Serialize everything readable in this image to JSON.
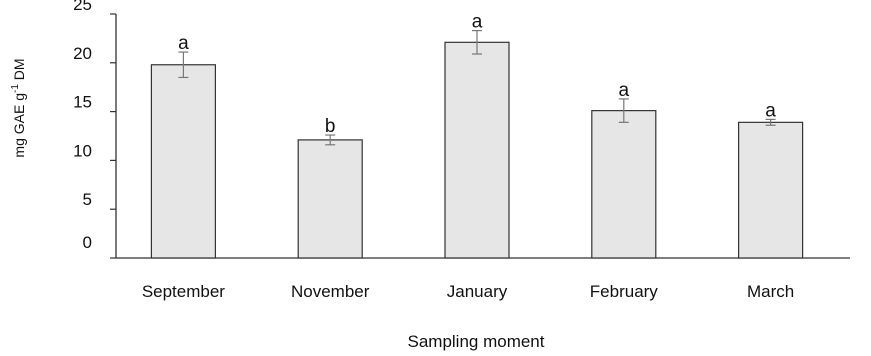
{
  "chart_data": {
    "type": "bar",
    "title": "",
    "xlabel": "Sampling moment",
    "ylabel": {
      "prefix": "mg GAE g",
      "superscript": "-1",
      "suffix": " DM"
    },
    "ylim": [
      0,
      25
    ],
    "yticks": [
      "0",
      "5",
      "10",
      "15",
      "20",
      "25"
    ],
    "grid": false,
    "legend": "none",
    "categories": [
      "September",
      "November",
      "January",
      "February",
      "March"
    ],
    "values": [
      19.8,
      12.1,
      22.1,
      15.1,
      13.9
    ],
    "error": [
      1.3,
      0.5,
      1.2,
      1.2,
      0.3
    ],
    "significance": [
      "a",
      "b",
      "a",
      "a",
      "a"
    ],
    "colors": {
      "bar_fill": "#e6e6e6",
      "bar_stroke": "#333333",
      "error_bar": "#777777",
      "axis": "#333333"
    }
  }
}
